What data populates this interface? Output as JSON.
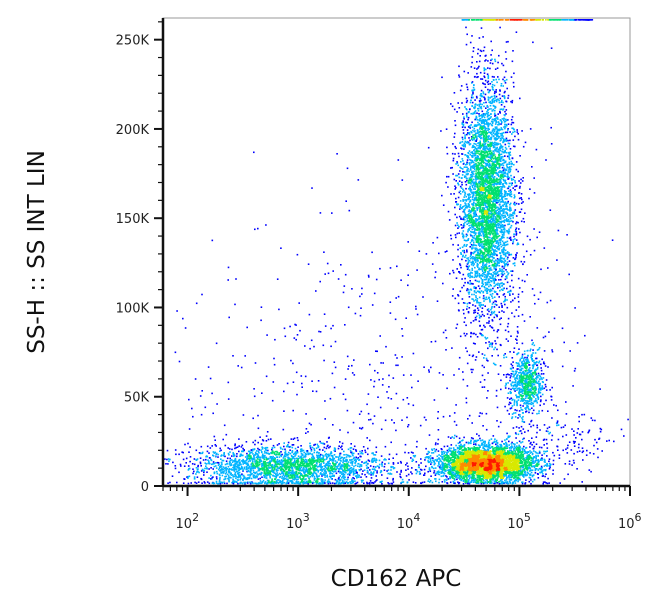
{
  "chart_data": {
    "type": "scatter",
    "subtype": "flow-cytometry density dot plot (pseudocolor)",
    "xlabel": "CD162 APC",
    "ylabel": "SS-H :: SS INT LIN",
    "x_scale": "log",
    "xlim": [
      60,
      1000000
    ],
    "x_ticks": [
      {
        "value": 100,
        "base": "10",
        "exp": "2"
      },
      {
        "value": 1000,
        "base": "10",
        "exp": "3"
      },
      {
        "value": 10000,
        "base": "10",
        "exp": "4"
      },
      {
        "value": 100000,
        "base": "10",
        "exp": "5"
      },
      {
        "value": 1000000,
        "base": "10",
        "exp": "6"
      }
    ],
    "y_scale": "linear",
    "ylim": [
      0,
      262144
    ],
    "y_ticks": [
      {
        "value": 0,
        "label": "0"
      },
      {
        "value": 50000,
        "label": "50K"
      },
      {
        "value": 100000,
        "label": "100K"
      },
      {
        "value": 150000,
        "label": "150K"
      },
      {
        "value": 200000,
        "label": "200K"
      },
      {
        "value": 250000,
        "label": "250K"
      }
    ],
    "grid": false,
    "legend": "none",
    "density_colors": [
      "#0000ff",
      "#00b4ff",
      "#00e070",
      "#d8e800",
      "#ff8a00",
      "#ff1a00"
    ],
    "populations": [
      {
        "center_x": 50000,
        "center_y": 162000,
        "spread_log_x": 0.12,
        "spread_y": 32000,
        "count": 4200
      },
      {
        "center_x": 50000,
        "center_y": 13000,
        "spread_log_x": 0.22,
        "spread_y": 5000,
        "count": 4000
      },
      {
        "center_x": 115000,
        "center_y": 58000,
        "spread_log_x": 0.08,
        "spread_y": 9000,
        "count": 700
      },
      {
        "center_x": 800,
        "center_y": 11000,
        "spread_log_x": 0.45,
        "spread_y": 6000,
        "count": 2400
      },
      {
        "center_x": 4000,
        "center_y": 60000,
        "spread_log_x": 0.9,
        "spread_y": 45000,
        "count": 450
      },
      {
        "center_x": 200000,
        "center_y": 25000,
        "spread_log_x": 0.35,
        "spread_y": 9000,
        "count": 160
      },
      {
        "center_x": 70000,
        "center_y": 100000,
        "spread_log_x": 0.3,
        "spread_y": 60000,
        "count": 300
      }
    ],
    "saturated_top_x_range": [
      30000,
      450000
    ]
  }
}
